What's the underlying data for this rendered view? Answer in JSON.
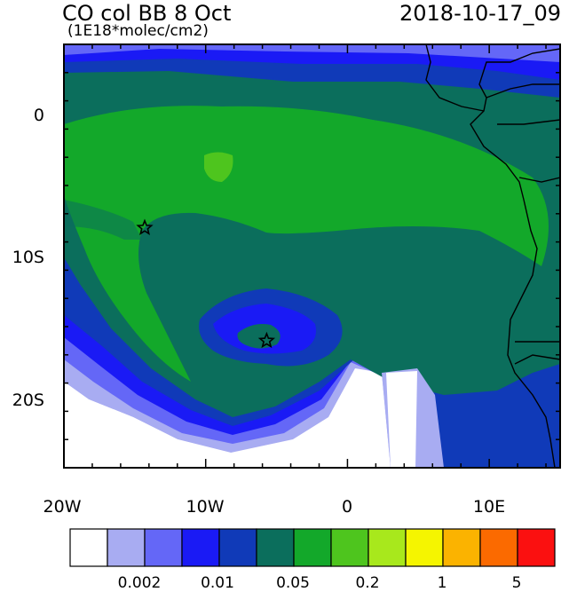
{
  "header": {
    "title": "CO col BB 8 Oct",
    "units": "(1E18*molec/cm2)",
    "timestamp": "2018-10-17_09"
  },
  "map": {
    "lon_range": [
      -20,
      15
    ],
    "lat_range": [
      -25,
      5
    ],
    "x_tick_labels": [
      "20W",
      "10W",
      "0",
      "10E"
    ],
    "y_tick_labels": [
      "0",
      "10S",
      "20S"
    ],
    "markers": [
      {
        "name": "star-marker-north",
        "lon": -14.3,
        "lat": -8.0
      },
      {
        "name": "star-marker-south",
        "lon": -5.7,
        "lat": -16.0
      }
    ]
  },
  "colorbar": {
    "colors": [
      "#ffffff",
      "#a8acf2",
      "#6467f7",
      "#1a1af5",
      "#103ab8",
      "#0b6e5c",
      "#13a82a",
      "#4ec51e",
      "#a8e81c",
      "#f5f500",
      "#fbb300",
      "#fb6a00",
      "#fb1010"
    ],
    "tick_labels": [
      "0.002",
      "0.01",
      "0.05",
      "0.2",
      "1",
      "5"
    ]
  }
}
